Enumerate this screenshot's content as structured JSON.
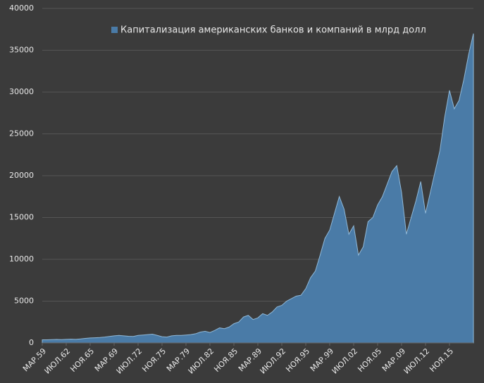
{
  "chart_data": {
    "type": "area",
    "categories": [
      "МАР.59",
      null,
      null,
      null,
      null,
      "ИЮЛ.62",
      null,
      null,
      null,
      null,
      "НОЯ.65",
      null,
      null,
      null,
      null,
      "МАР.69",
      null,
      null,
      null,
      null,
      "ИЮЛ.72",
      null,
      null,
      null,
      null,
      "НОЯ.75",
      null,
      null,
      null,
      null,
      "МАР.79",
      null,
      null,
      null,
      null,
      "ИЮЛ.82",
      null,
      null,
      null,
      null,
      "НОЯ.85",
      null,
      null,
      null,
      null,
      "МАР.89",
      null,
      null,
      null,
      null,
      "ИЮЛ.92",
      null,
      null,
      null,
      null,
      "НОЯ.95",
      null,
      null,
      null,
      null,
      "МАР.99",
      null,
      null,
      null,
      null,
      "ИЮЛ.02",
      null,
      null,
      null,
      null,
      "НОЯ.05",
      null,
      null,
      null,
      null,
      "МАР.09",
      null,
      null,
      null,
      null,
      "ИЮЛ.12",
      null,
      null,
      null,
      null,
      "НОЯ.15",
      null,
      null,
      null,
      null,
      null
    ],
    "series": [
      {
        "name": "Капитализация американских банков и компаний в млрд долл",
        "color": "#4a7ba7",
        "values": [
          380,
          380,
          400,
          420,
          400,
          430,
          450,
          430,
          480,
          550,
          600,
          620,
          650,
          700,
          780,
          850,
          900,
          850,
          800,
          780,
          900,
          950,
          1000,
          1050,
          900,
          750,
          700,
          850,
          900,
          900,
          950,
          1000,
          1100,
          1300,
          1400,
          1250,
          1500,
          1800,
          1700,
          1900,
          2300,
          2500,
          3100,
          3300,
          2800,
          3000,
          3500,
          3300,
          3700,
          4300,
          4500,
          5000,
          5300,
          5600,
          5700,
          6500,
          7800,
          8600,
          10500,
          12500,
          13500,
          15500,
          17500,
          16000,
          13000,
          14000,
          10500,
          11500,
          14500,
          15000,
          16500,
          17500,
          19000,
          20500,
          21200,
          18000,
          13000,
          15000,
          17000,
          19300,
          15500,
          18000,
          20500,
          23000,
          27000,
          30200,
          28000,
          29000,
          31500,
          34500,
          37000
        ]
      }
    ],
    "ylim": [
      0,
      40000
    ],
    "yticks": [
      0,
      5000,
      10000,
      15000,
      20000,
      25000,
      30000,
      35000,
      40000
    ],
    "grid": true,
    "legend": "top"
  }
}
